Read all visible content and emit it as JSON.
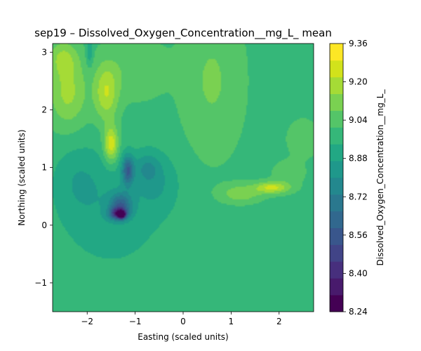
{
  "chart_data": {
    "type": "heatmap",
    "title": "sep19 – Dissolved_Oxygen_Concentration__mg_L_ mean",
    "xlabel": "Easting (scaled units)",
    "ylabel": "Northing (scaled units)",
    "xlim": [
      -2.72,
      2.72
    ],
    "ylim": [
      -1.5,
      3.15
    ],
    "xticks": [
      -2,
      -1,
      0,
      1,
      2
    ],
    "yticks": [
      -1,
      0,
      1,
      2,
      3
    ],
    "xtick_labels": [
      "−2",
      "−1",
      "0",
      "1",
      "2"
    ],
    "ytick_labels": [
      "−1",
      "0",
      "1",
      "2",
      "3"
    ],
    "colorbar": {
      "label": "Dissolved_Oxygen_Concentration__mg_L_",
      "levels": [
        8.24,
        8.32,
        8.4,
        8.48,
        8.56,
        8.64,
        8.72,
        8.8,
        8.88,
        8.96,
        9.04,
        9.12,
        9.2,
        9.28,
        9.36
      ],
      "tick_values": [
        8.24,
        8.4,
        8.56,
        8.72,
        8.88,
        9.04,
        9.2,
        9.36
      ],
      "tick_labels": [
        "8.24",
        "8.40",
        "8.56",
        "8.72",
        "8.88",
        "9.04",
        "9.20",
        "9.36"
      ],
      "colors": [
        "#440154",
        "#481a6c",
        "#472f7d",
        "#414487",
        "#39568c",
        "#31688e",
        "#2a788e",
        "#23888e",
        "#1f988b",
        "#22a884",
        "#35b779",
        "#54c568",
        "#7ad151",
        "#a5db36",
        "#d2e21b",
        "#fde725"
      ]
    },
    "grid": false,
    "field_features": [
      {
        "x": -0.6,
        "y": 0.9,
        "value": 8.8
      },
      {
        "x": -1.15,
        "y": 1.0,
        "value": 8.62
      },
      {
        "x": -1.35,
        "y": 0.2,
        "value": 8.4
      },
      {
        "x": -1.3,
        "y": 0.18,
        "value": 8.3
      },
      {
        "x": -1.45,
        "y": 1.4,
        "value": 9.28
      },
      {
        "x": -1.6,
        "y": 2.3,
        "value": 9.2
      },
      {
        "x": -2.3,
        "y": 2.3,
        "value": 9.12
      },
      {
        "x": 1.85,
        "y": 0.65,
        "value": 9.2
      },
      {
        "x": 1.1,
        "y": 0.55,
        "value": 9.12
      },
      {
        "x": 0.9,
        "y": 2.0,
        "value": 8.99
      }
    ]
  }
}
